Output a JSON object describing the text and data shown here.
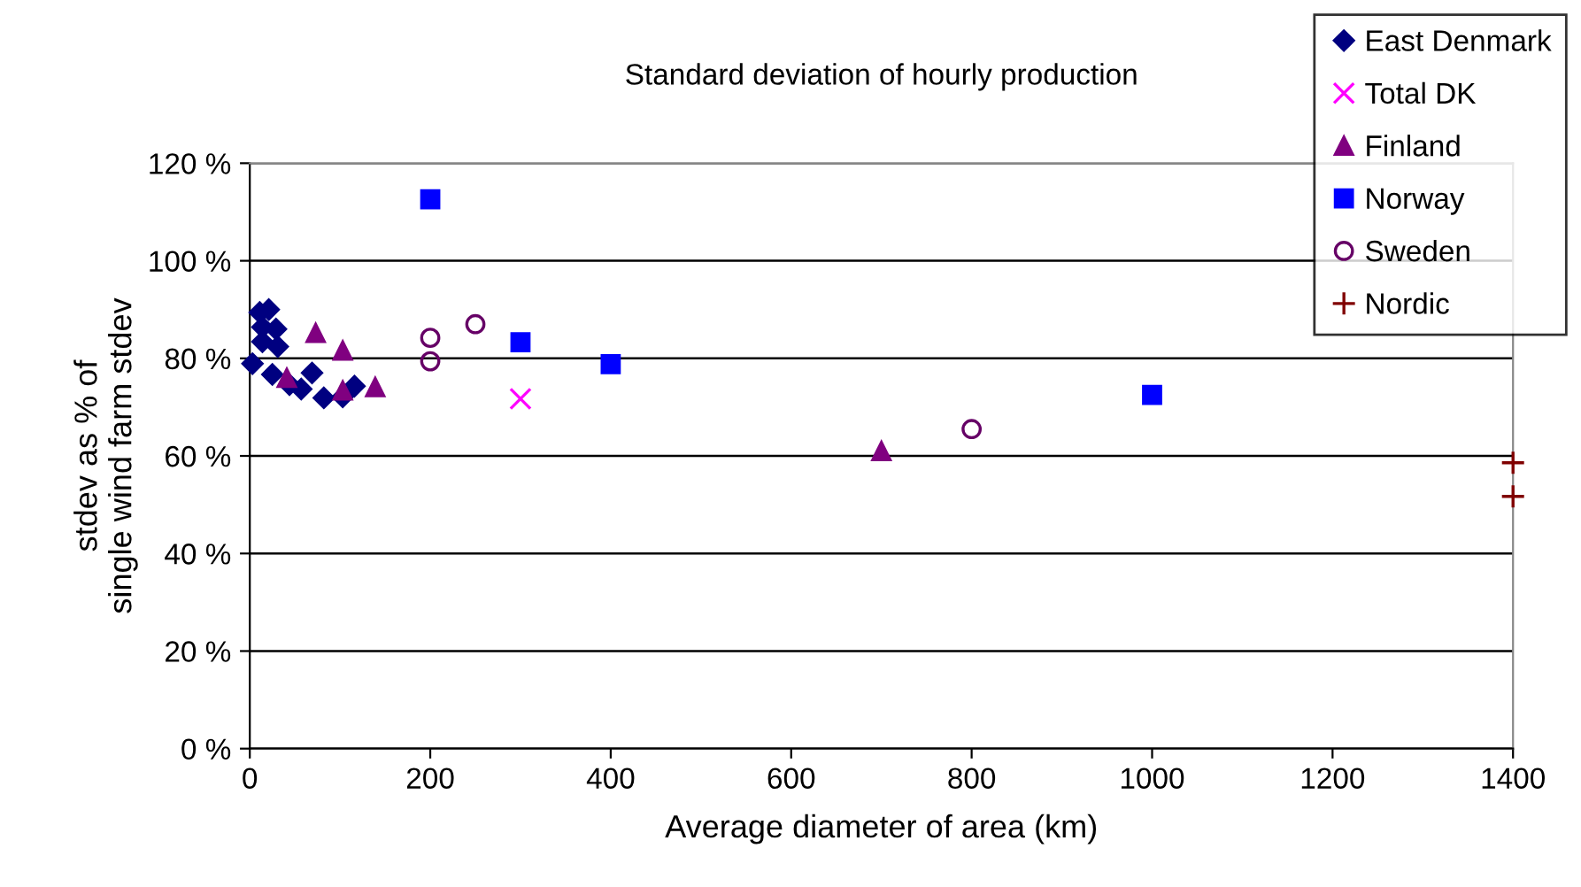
{
  "chart_data": {
    "type": "scatter",
    "title": "Standard deviation of hourly production",
    "xlabel": "Average diameter of area (km)",
    "ylabel": "stdev as % of\nsingle wind farm stdev",
    "xlim": [
      0,
      1400
    ],
    "xticks": [
      0,
      200,
      400,
      600,
      800,
      1000,
      1200,
      1400
    ],
    "ylim": [
      0,
      120
    ],
    "yticks": [
      {
        "value": 0,
        "label": "0 %"
      },
      {
        "value": 20,
        "label": "20 %"
      },
      {
        "value": 40,
        "label": "40 %"
      },
      {
        "value": 60,
        "label": "60 %"
      },
      {
        "value": 80,
        "label": "80 %"
      },
      {
        "value": 100,
        "label": "100 %"
      },
      {
        "value": 120,
        "label": "120 %"
      }
    ],
    "grid": "y",
    "legend": "top right",
    "series": [
      {
        "name": "East Denmark",
        "color": "#000080",
        "marker": "diamond",
        "x": [
          21,
          11,
          14,
          29,
          14,
          31,
          3,
          25,
          44,
          57,
          69,
          82,
          103,
          116
        ],
        "values": [
          90,
          89.4,
          86.4,
          86,
          83.4,
          82.4,
          78.9,
          76.7,
          74.6,
          73.7,
          77,
          71.9,
          72.1,
          74.3
        ]
      },
      {
        "name": "Total DK",
        "color": "#ff00ff",
        "marker": "cross",
        "x": [
          300
        ],
        "values": [
          71.7
        ]
      },
      {
        "name": "Finland",
        "color": "#800080",
        "marker": "triangle",
        "x": [
          73,
          103,
          41,
          103,
          139,
          700
        ],
        "values": [
          85.2,
          81.6,
          76,
          73.4,
          74.1,
          61
        ]
      },
      {
        "name": "Norway",
        "color": "#0000ff",
        "marker": "square",
        "x": [
          200,
          300,
          400,
          1000
        ],
        "values": [
          112.6,
          83.3,
          78.8,
          72.5
        ]
      },
      {
        "name": "Sweden",
        "color": "#660066",
        "marker": "circle",
        "x": [
          200,
          200,
          250,
          800
        ],
        "values": [
          84.2,
          79.4,
          87,
          65.5
        ]
      },
      {
        "name": "Nordic",
        "color": "#800000",
        "marker": "plus",
        "x": [
          1400,
          1400
        ],
        "values": [
          58.6,
          51.7
        ]
      }
    ]
  }
}
